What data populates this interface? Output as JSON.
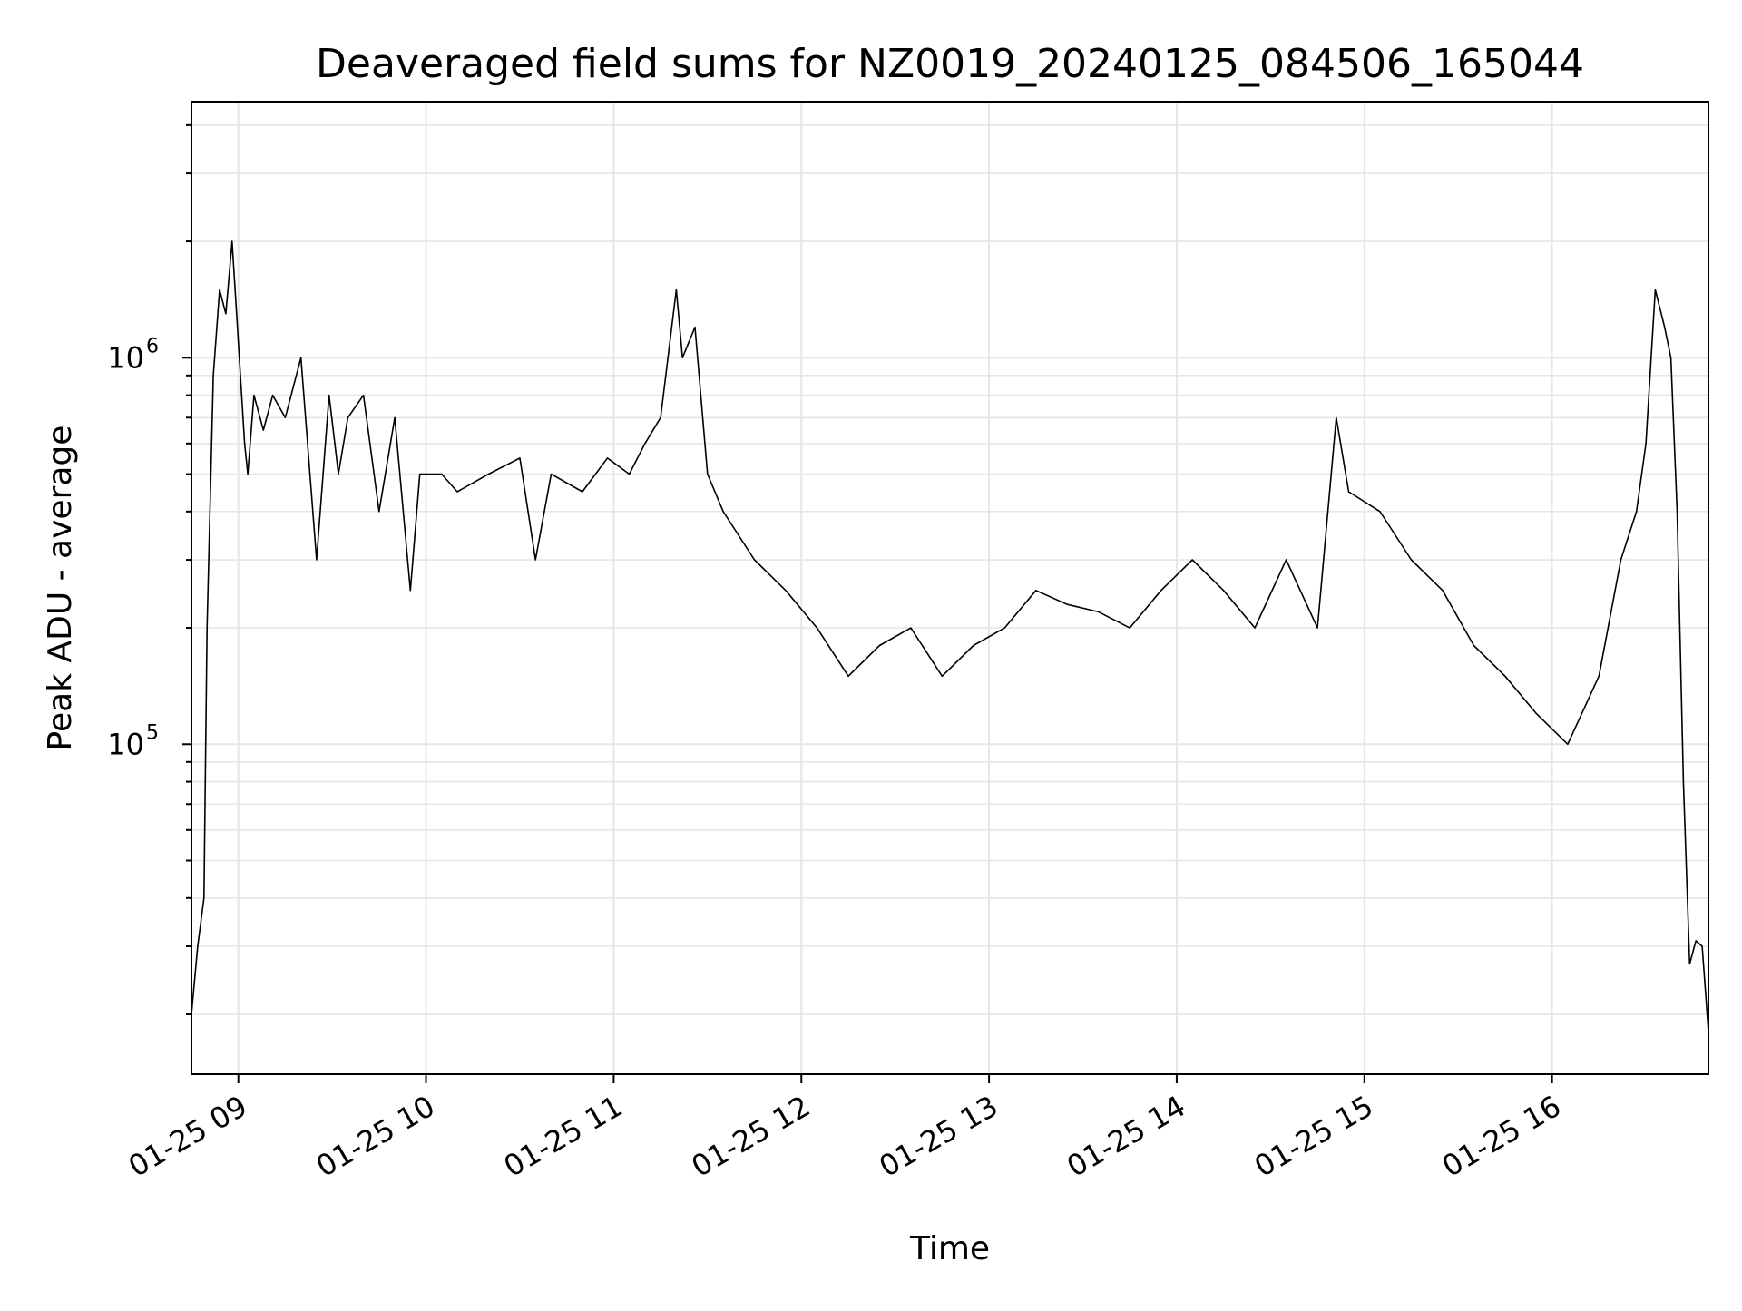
{
  "chart_data": {
    "type": "line",
    "title": "Deaveraged field sums for NZ0019_20240125_084506_165044",
    "xlabel": "Time",
    "ylabel": "Peak ADU - average",
    "yscale": "log",
    "grid": true,
    "line_color": "#000000",
    "xlim": [
      "2024-01-25 08:45",
      "2024-01-25 16:50"
    ],
    "ylim": [
      14000,
      4600000
    ],
    "x_ticks": [
      {
        "value": "2024-01-25 09:00",
        "label": "01-25 09"
      },
      {
        "value": "2024-01-25 10:00",
        "label": "01-25 10"
      },
      {
        "value": "2024-01-25 11:00",
        "label": "01-25 11"
      },
      {
        "value": "2024-01-25 12:00",
        "label": "01-25 12"
      },
      {
        "value": "2024-01-25 13:00",
        "label": "01-25 13"
      },
      {
        "value": "2024-01-25 14:00",
        "label": "01-25 14"
      },
      {
        "value": "2024-01-25 15:00",
        "label": "01-25 15"
      },
      {
        "value": "2024-01-25 16:00",
        "label": "01-25 16"
      }
    ],
    "y_ticks": [
      {
        "value": 100000,
        "base": "10",
        "exp": "5"
      },
      {
        "value": 1000000,
        "base": "10",
        "exp": "6"
      }
    ],
    "series": [
      {
        "x": [
          "2024-01-25 08:45",
          "2024-01-25 08:47",
          "2024-01-25 08:49",
          "2024-01-25 08:50",
          "2024-01-25 08:52",
          "2024-01-25 08:54",
          "2024-01-25 08:56",
          "2024-01-25 08:58",
          "2024-01-25 09:00",
          "2024-01-25 09:02",
          "2024-01-25 09:03",
          "2024-01-25 09:05",
          "2024-01-25 09:08",
          "2024-01-25 09:11",
          "2024-01-25 09:15",
          "2024-01-25 09:20",
          "2024-01-25 09:25",
          "2024-01-25 09:29",
          "2024-01-25 09:32",
          "2024-01-25 09:35",
          "2024-01-25 09:40",
          "2024-01-25 09:45",
          "2024-01-25 09:50",
          "2024-01-25 09:55",
          "2024-01-25 09:58",
          "2024-01-25 10:05",
          "2024-01-25 10:10",
          "2024-01-25 10:20",
          "2024-01-25 10:30",
          "2024-01-25 10:35",
          "2024-01-25 10:40",
          "2024-01-25 10:50",
          "2024-01-25 10:58",
          "2024-01-25 11:05",
          "2024-01-25 11:10",
          "2024-01-25 11:15",
          "2024-01-25 11:20",
          "2024-01-25 11:22",
          "2024-01-25 11:26",
          "2024-01-25 11:30",
          "2024-01-25 11:35",
          "2024-01-25 11:45",
          "2024-01-25 11:55",
          "2024-01-25 12:05",
          "2024-01-25 12:15",
          "2024-01-25 12:25",
          "2024-01-25 12:35",
          "2024-01-25 12:45",
          "2024-01-25 12:55",
          "2024-01-25 13:05",
          "2024-01-25 13:15",
          "2024-01-25 13:25",
          "2024-01-25 13:35",
          "2024-01-25 13:45",
          "2024-01-25 13:55",
          "2024-01-25 14:05",
          "2024-01-25 14:15",
          "2024-01-25 14:25",
          "2024-01-25 14:35",
          "2024-01-25 14:45",
          "2024-01-25 14:51",
          "2024-01-25 14:55",
          "2024-01-25 15:05",
          "2024-01-25 15:15",
          "2024-01-25 15:25",
          "2024-01-25 15:35",
          "2024-01-25 15:45",
          "2024-01-25 15:55",
          "2024-01-25 16:05",
          "2024-01-25 16:15",
          "2024-01-25 16:22",
          "2024-01-25 16:27",
          "2024-01-25 16:30",
          "2024-01-25 16:33",
          "2024-01-25 16:36",
          "2024-01-25 16:38",
          "2024-01-25 16:40",
          "2024-01-25 16:42",
          "2024-01-25 16:44",
          "2024-01-25 16:46",
          "2024-01-25 16:48",
          "2024-01-25 16:50"
        ],
        "y": [
          20000,
          30000,
          40000,
          200000,
          900000,
          1500000,
          1300000,
          2000000,
          1100000,
          600000,
          500000,
          800000,
          650000,
          800000,
          700000,
          1000000,
          300000,
          800000,
          500000,
          700000,
          800000,
          400000,
          700000,
          250000,
          500000,
          500000,
          450000,
          500000,
          550000,
          300000,
          500000,
          450000,
          550000,
          500000,
          600000,
          700000,
          1500000,
          1000000,
          1200000,
          500000,
          400000,
          300000,
          250000,
          200000,
          150000,
          180000,
          200000,
          150000,
          180000,
          200000,
          250000,
          230000,
          220000,
          200000,
          250000,
          300000,
          250000,
          200000,
          300000,
          200000,
          700000,
          450000,
          400000,
          300000,
          250000,
          180000,
          150000,
          120000,
          100000,
          150000,
          300000,
          400000,
          600000,
          1500000,
          1200000,
          1000000,
          400000,
          80000,
          27000,
          31000,
          30000,
          18000
        ]
      }
    ]
  }
}
